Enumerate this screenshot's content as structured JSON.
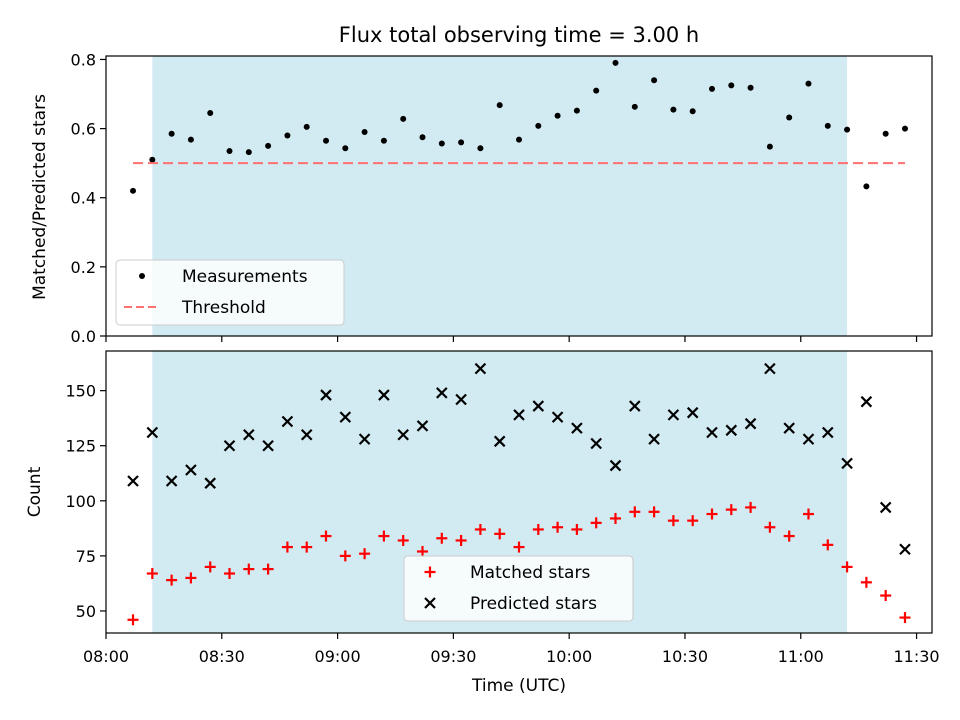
{
  "chart_data": [
    {
      "type": "scatter",
      "title": "Flux total observing time = 3.00 h",
      "xlabel": "",
      "ylabel": "Matched/Predicted stars",
      "xlim": [
        "08:00",
        "11:34"
      ],
      "ylim": [
        0,
        0.81
      ],
      "yticks": [
        0.0,
        0.2,
        0.4,
        0.6,
        0.8
      ],
      "ytick_labels": [
        "0.0",
        "0.2",
        "0.4",
        "0.6",
        "0.8"
      ],
      "shaded_interval": [
        "08:12",
        "11:12"
      ],
      "shade_color": "#add8e6",
      "series": [
        {
          "name": "Measurements",
          "marker": "dot",
          "color": "#000000",
          "x": [
            "08:07",
            "08:12",
            "08:17",
            "08:22",
            "08:27",
            "08:32",
            "08:37",
            "08:42",
            "08:47",
            "08:52",
            "08:57",
            "09:02",
            "09:07",
            "09:12",
            "09:17",
            "09:22",
            "09:27",
            "09:32",
            "09:37",
            "09:42",
            "09:47",
            "09:52",
            "09:57",
            "10:02",
            "10:07",
            "10:12",
            "10:17",
            "10:22",
            "10:27",
            "10:32",
            "10:37",
            "10:42",
            "10:47",
            "10:52",
            "10:57",
            "11:02",
            "11:07",
            "11:12",
            "11:17",
            "11:22",
            "11:27"
          ],
          "y": [
            0.42,
            0.51,
            0.585,
            0.568,
            0.645,
            0.535,
            0.532,
            0.55,
            0.58,
            0.605,
            0.565,
            0.543,
            0.59,
            0.565,
            0.628,
            0.575,
            0.557,
            0.56,
            0.543,
            0.668,
            0.568,
            0.608,
            0.637,
            0.652,
            0.71,
            0.79,
            0.663,
            0.74,
            0.655,
            0.65,
            0.715,
            0.725,
            0.718,
            0.548,
            0.632,
            0.73,
            0.608,
            0.597,
            0.433,
            0.585,
            0.6
          ]
        },
        {
          "name": "Threshold",
          "marker": "dashed-line",
          "color": "#ff7070",
          "x": [
            "08:07",
            "11:27"
          ],
          "y": [
            0.5,
            0.5
          ]
        }
      ],
      "legend": "lower-left"
    },
    {
      "type": "scatter",
      "title": "",
      "xlabel": "Time (UTC)",
      "ylabel": "Count",
      "xlim": [
        "08:00",
        "11:34"
      ],
      "ylim": [
        40,
        168
      ],
      "yticks": [
        50,
        75,
        100,
        125,
        150
      ],
      "xticks": [
        "08:00",
        "08:30",
        "09:00",
        "09:30",
        "10:00",
        "10:30",
        "11:00",
        "11:30"
      ],
      "shaded_interval": [
        "08:12",
        "11:12"
      ],
      "shade_color": "#add8e6",
      "series": [
        {
          "name": "Matched stars",
          "marker": "plus",
          "color": "#ff0000",
          "x": [
            "08:07",
            "08:12",
            "08:17",
            "08:22",
            "08:27",
            "08:32",
            "08:37",
            "08:42",
            "08:47",
            "08:52",
            "08:57",
            "09:02",
            "09:07",
            "09:12",
            "09:17",
            "09:22",
            "09:27",
            "09:32",
            "09:37",
            "09:42",
            "09:47",
            "09:52",
            "09:57",
            "10:02",
            "10:07",
            "10:12",
            "10:17",
            "10:22",
            "10:27",
            "10:32",
            "10:37",
            "10:42",
            "10:47",
            "10:52",
            "10:57",
            "11:02",
            "11:07",
            "11:12",
            "11:17",
            "11:22",
            "11:27"
          ],
          "y": [
            46,
            67,
            64,
            65,
            70,
            67,
            69,
            69,
            79,
            79,
            84,
            75,
            76,
            84,
            82,
            77,
            83,
            82,
            87,
            85,
            79,
            87,
            88,
            87,
            90,
            92,
            95,
            95,
            91,
            91,
            94,
            96,
            97,
            88,
            84,
            94,
            80,
            70,
            63,
            57,
            47
          ]
        },
        {
          "name": "Predicted stars",
          "marker": "cross",
          "color": "#000000",
          "x": [
            "08:07",
            "08:12",
            "08:17",
            "08:22",
            "08:27",
            "08:32",
            "08:37",
            "08:42",
            "08:47",
            "08:52",
            "08:57",
            "09:02",
            "09:07",
            "09:12",
            "09:17",
            "09:22",
            "09:27",
            "09:32",
            "09:37",
            "09:42",
            "09:47",
            "09:52",
            "09:57",
            "10:02",
            "10:07",
            "10:12",
            "10:17",
            "10:22",
            "10:27",
            "10:32",
            "10:37",
            "10:42",
            "10:47",
            "10:52",
            "10:57",
            "11:02",
            "11:07",
            "11:12",
            "11:17",
            "11:22",
            "11:27"
          ],
          "y": [
            109,
            131,
            109,
            114,
            108,
            125,
            130,
            125,
            136,
            130,
            148,
            138,
            128,
            148,
            130,
            134,
            149,
            146,
            160,
            127,
            139,
            143,
            138,
            133,
            126,
            116,
            143,
            128,
            139,
            140,
            131,
            132,
            135,
            160,
            133,
            128,
            131,
            117,
            145,
            97,
            78
          ]
        }
      ],
      "legend": "lower-center"
    }
  ]
}
